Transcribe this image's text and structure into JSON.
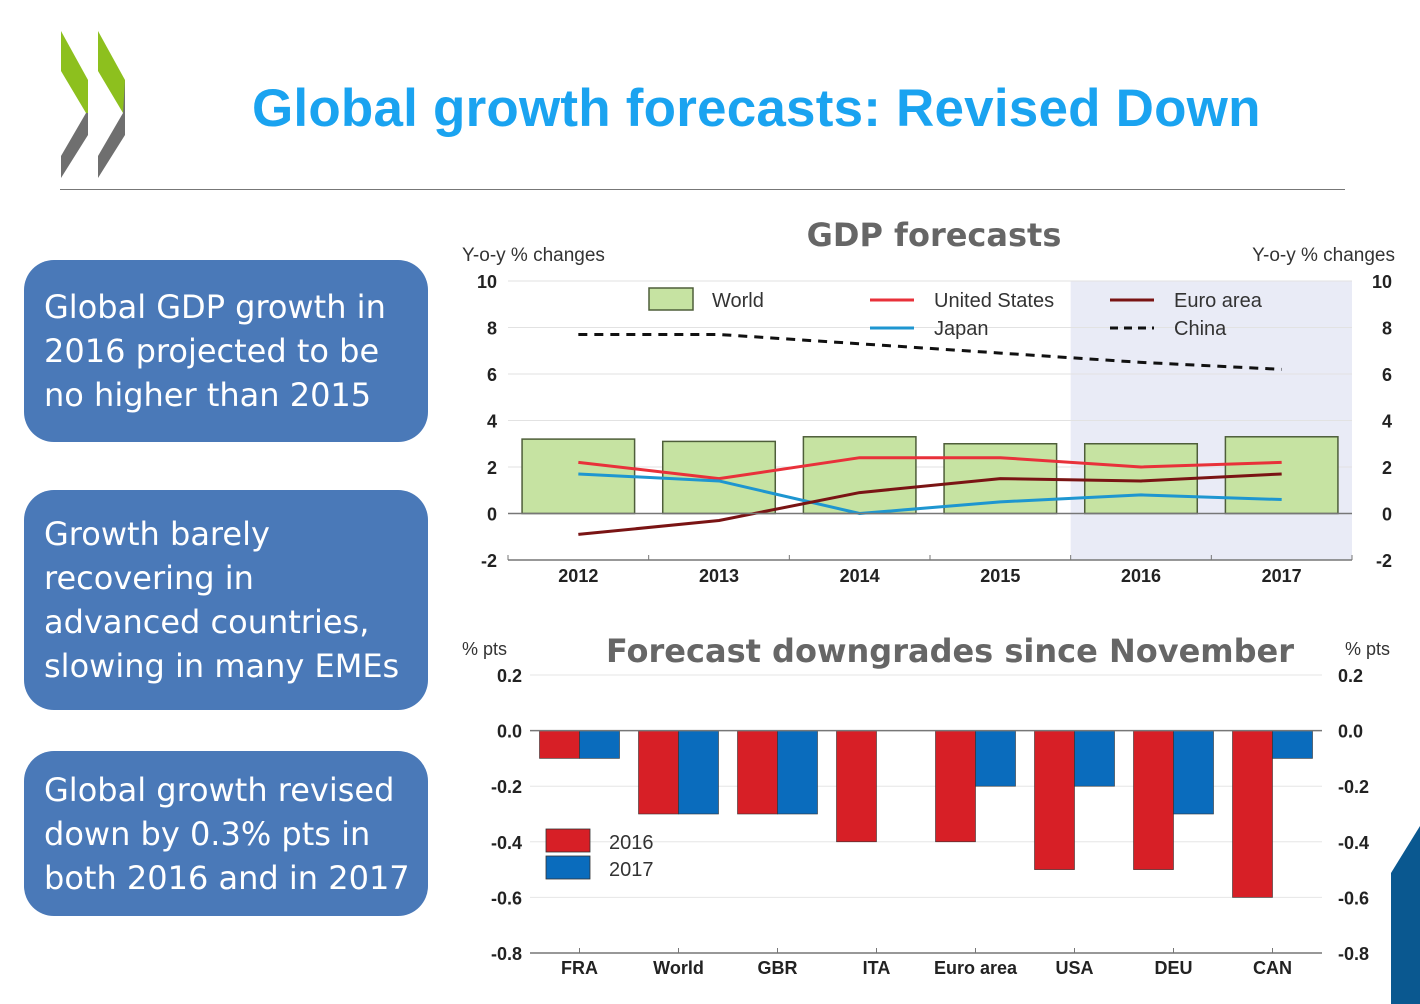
{
  "slide": {
    "title": "Global growth forecasts: Revised Down",
    "logo": "oecd-chevron-logo",
    "callouts": [
      "Global GDP growth in 2016 projected to be no higher than 2015",
      "Growth barely recovering in advanced countries, slowing in many EMEs",
      "Global growth revised down by 0.3% pts in both 2016 and in 2017"
    ]
  },
  "colors": {
    "title": "#1aa3f0",
    "callout_bg": "#4a79b8",
    "world_bar": "#c6e3a2",
    "united_states": "#e8313a",
    "japan": "#1e96d0",
    "euro_area": "#7a1414",
    "china": "#111111",
    "forecast_shade": "#e9ebf6",
    "bar_2016": "#d71f26",
    "bar_2017": "#0a6cbd",
    "corner_shape": "#0a5890"
  },
  "chart_data": [
    {
      "type": "bar",
      "title": "GDP forecasts",
      "ylabel_left": "Y-o-y % changes",
      "ylabel_right": "Y-o-y % changes",
      "xlabel": "",
      "ylim": [
        -2,
        10
      ],
      "yticks": [
        10,
        8,
        6,
        4,
        2,
        0,
        -2
      ],
      "grid": true,
      "legend_position": "top",
      "forecast_shaded_categories": [
        "2016",
        "2017"
      ],
      "categories": [
        "2012",
        "2013",
        "2014",
        "2015",
        "2016",
        "2017"
      ],
      "series": [
        {
          "name": "World",
          "kind": "bar",
          "values": [
            3.2,
            3.1,
            3.3,
            3.0,
            3.0,
            3.3
          ]
        },
        {
          "name": "United States",
          "kind": "line",
          "values": [
            2.2,
            1.5,
            2.4,
            2.4,
            2.0,
            2.2
          ]
        },
        {
          "name": "Japan",
          "kind": "line",
          "values": [
            1.7,
            1.4,
            0.0,
            0.5,
            0.8,
            0.6
          ]
        },
        {
          "name": "Euro area",
          "kind": "line",
          "values": [
            -0.9,
            -0.3,
            0.9,
            1.5,
            1.4,
            1.7
          ]
        },
        {
          "name": "China",
          "kind": "dashed-line",
          "values": [
            7.7,
            7.7,
            7.3,
            6.9,
            6.5,
            6.2
          ]
        }
      ]
    },
    {
      "type": "bar",
      "title": "Forecast downgrades since November",
      "ylabel_left": "% pts",
      "ylabel_right": "% pts",
      "xlabel": "",
      "ylim": [
        -0.8,
        0.2
      ],
      "yticks": [
        "0.2",
        "0.0",
        "-0.2",
        "-0.4",
        "-0.6",
        "-0.8"
      ],
      "grid": true,
      "legend_position": "bottom-left",
      "categories": [
        "FRA",
        "World",
        "GBR",
        "ITA",
        "Euro area",
        "USA",
        "DEU",
        "CAN"
      ],
      "series": [
        {
          "name": "2016",
          "values": [
            -0.1,
            -0.3,
            -0.3,
            -0.4,
            -0.4,
            -0.5,
            -0.5,
            -0.6
          ]
        },
        {
          "name": "2017",
          "values": [
            -0.1,
            -0.3,
            -0.3,
            0.0,
            -0.2,
            -0.2,
            -0.3,
            -0.1
          ]
        }
      ]
    }
  ]
}
